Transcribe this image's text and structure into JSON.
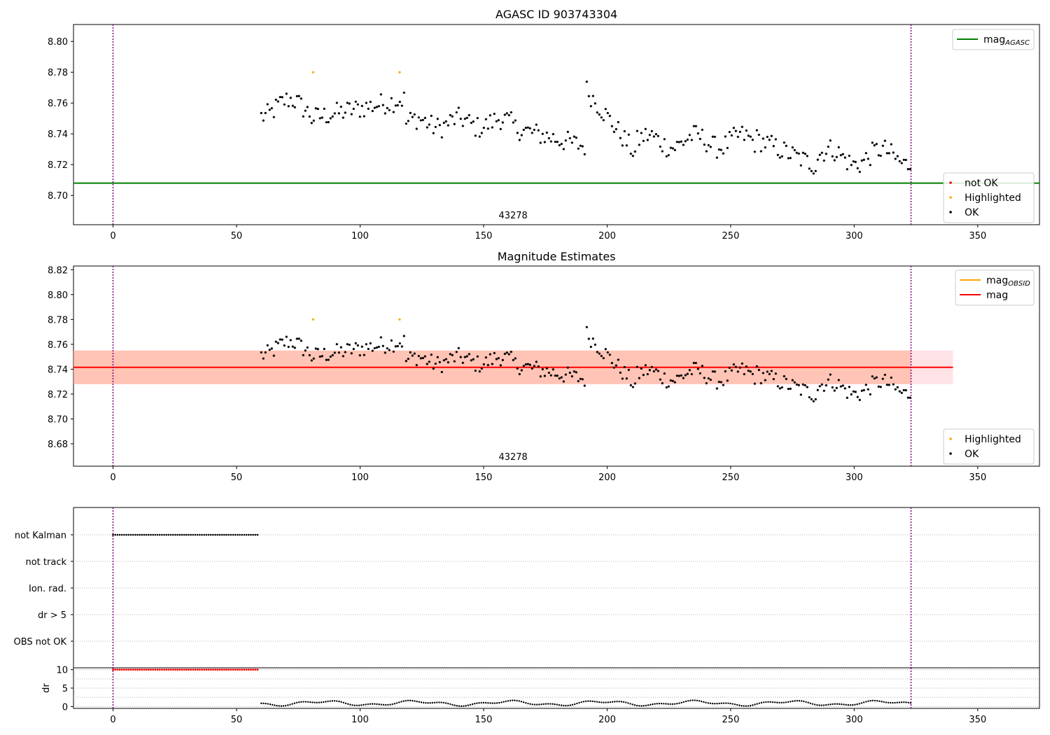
{
  "colors": {
    "ok": "#000000",
    "highlighted": "#ffa500",
    "not_ok": "#ff0000",
    "agasc_line": "#008000",
    "obsid_line": "#ffa500",
    "mag_line": "#ff0000",
    "band_mag": "#ffb6c1",
    "band_obsid": "#ffa07a",
    "vline": "#800080",
    "grid": "#b0b0b0"
  },
  "chart_data": [
    {
      "type": "scatter",
      "title": "AGASC ID 903743304",
      "annotation": "43278",
      "xlim": [
        -16,
        375
      ],
      "ylim": [
        8.681,
        8.811
      ],
      "x_ticks": [
        0,
        50,
        100,
        150,
        200,
        250,
        300,
        350
      ],
      "y_ticks": [
        8.7,
        8.72,
        8.74,
        8.76,
        8.78,
        8.8
      ],
      "mag_agasc": 8.708,
      "obs_boundaries": [
        0,
        323
      ],
      "highlighted_points": [
        [
          81,
          8.78
        ],
        [
          116,
          8.78
        ]
      ],
      "legend_lines": [
        {
          "label": "mag",
          "sub": "AGASC",
          "color": "#008000"
        }
      ],
      "legend_points": [
        {
          "label": "not OK",
          "color": "#ff0000"
        },
        {
          "label": "Highlighted",
          "color": "#ffa500"
        },
        {
          "label": "OK",
          "color": "#000000"
        }
      ]
    },
    {
      "type": "scatter",
      "title": "Magnitude Estimates",
      "annotation": "43278",
      "xlim": [
        -16,
        375
      ],
      "ylim": [
        8.662,
        8.823
      ],
      "x_ticks": [
        0,
        50,
        100,
        150,
        200,
        250,
        300,
        350
      ],
      "y_ticks": [
        8.68,
        8.7,
        8.72,
        8.74,
        8.76,
        8.78,
        8.8,
        8.82
      ],
      "mag": 8.7415,
      "mag_band": [
        8.728,
        8.755
      ],
      "mag_band_x": [
        -16,
        340
      ],
      "obsid_band_x": [
        -16,
        323
      ],
      "obs_boundaries": [
        0,
        323
      ],
      "highlighted_points": [
        [
          81,
          8.78
        ],
        [
          116,
          8.78
        ]
      ],
      "legend_lines": [
        {
          "label": "mag",
          "sub": "OBSID",
          "color": "#ffa500"
        },
        {
          "label": "mag",
          "sub": "",
          "color": "#ff0000"
        }
      ],
      "legend_points": [
        {
          "label": "Highlighted",
          "color": "#ffa500"
        },
        {
          "label": "OK",
          "color": "#000000"
        }
      ]
    },
    {
      "type": "scatter",
      "title": "",
      "xlim": [
        -16,
        375
      ],
      "categories": [
        "not Kalman",
        "not track",
        "Ion. rad.",
        "dr > 5",
        "OBS not OK"
      ],
      "flag_ranges": [
        {
          "category": "not Kalman",
          "x": [
            0,
            59
          ]
        }
      ],
      "obs_boundaries": [
        0,
        323
      ]
    },
    {
      "type": "scatter",
      "title": "",
      "ylabel": "dr",
      "xlim": [
        -16,
        375
      ],
      "ylim": [
        -0.5,
        10.5
      ],
      "x_ticks": [
        0,
        50,
        100,
        150,
        200,
        250,
        300,
        350
      ],
      "y_ticks": [
        0,
        5,
        10
      ],
      "clipped_value": 10,
      "clipped_range": [
        0,
        59
      ],
      "obs_boundaries": [
        0,
        323
      ]
    }
  ]
}
